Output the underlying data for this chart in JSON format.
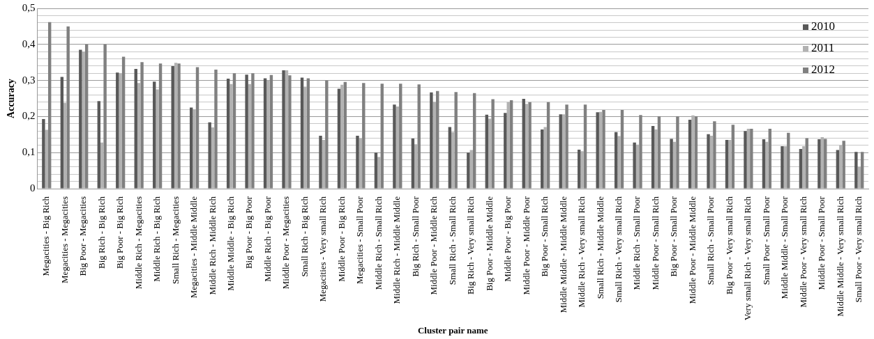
{
  "chart_data": {
    "type": "bar",
    "xlabel": "Cluster pair name",
    "ylabel": "Accuracy",
    "categories": [
      "Megacities - Big Rich",
      "Megacities - Megacities",
      "Big Poor - Megacities",
      "Big Rich - Big Rich",
      "Big Poor - Big Rich",
      "Middle Rich - Megacities",
      "Middle Rich - Big Rich",
      "Small Rich - Megacities",
      "Megacities - Middle Middle",
      "Middle Rich - Middle Rich",
      "Middle Middle - Big Rich",
      "Big Poor - Big Poor",
      "Middle Rich - Big Poor",
      "Middle Poor - Megacities",
      "Small Rich - Big Rich",
      "Megacities - Very small Rich",
      "Middle Poor - Big Rich",
      "Megacities - Small Poor",
      "Middle Rich - Small Rich",
      "Middle Rich - Middle Middle",
      "Big Rich - Small Poor",
      "Middle Poor - Middle Rich",
      "Small Rich - Small Rich",
      "Big Rich - Very small Rich",
      "Big Poor - Middle Middle",
      "Middle Poor - Big Poor",
      "Middle Poor - Middle Poor",
      "Big Poor - Small Rich",
      "Middle Middle - Middle Middle",
      "Middle Rich - Very small Rich",
      "Small Rich - Middle Middle",
      "Small Rich - Very small Rich",
      "Middle Rich - Small Poor",
      "Middle Poor - Small Rich",
      "Big Poor - Small Poor",
      "Middle Poor - Middle Middle",
      "Small Rich - Small Poor",
      "Big Poor - Very small Rich",
      "Very small Rich - Very small Rich",
      "Small Poor - Small Poor",
      "Middle Middle - Small Poor",
      "Middle Poor - Very small Rich",
      "Middle Poor - Small Poor",
      "Middle Middle - Very small Rich",
      "Small Poor - Very small Rich"
    ],
    "series": [
      {
        "name": "2010",
        "color": "#595959",
        "values": [
          0.193,
          0.31,
          0.385,
          0.243,
          0.322,
          0.332,
          0.297,
          0.34,
          0.225,
          0.184,
          0.305,
          0.316,
          0.306,
          0.328,
          0.308,
          0.147,
          0.277,
          0.147,
          0.1,
          0.233,
          0.139,
          0.267,
          0.171,
          0.1,
          0.205,
          0.21,
          0.249,
          0.164,
          0.206,
          0.108,
          0.212,
          0.157,
          0.128,
          0.174,
          0.138,
          0.191,
          0.151,
          0.135,
          0.16,
          0.137,
          0.118,
          0.11,
          0.137,
          0.107,
          0.102
        ]
      },
      {
        "name": "2011",
        "color": "#b2b2b2",
        "values": [
          0.163,
          0.238,
          0.38,
          0.128,
          0.32,
          0.293,
          0.275,
          0.349,
          0.22,
          0.17,
          0.29,
          0.29,
          0.3,
          0.328,
          0.283,
          0.135,
          0.288,
          0.139,
          0.088,
          0.228,
          0.123,
          0.24,
          0.157,
          0.107,
          0.194,
          0.24,
          0.235,
          0.171,
          0.206,
          0.104,
          0.213,
          0.146,
          0.122,
          0.164,
          0.13,
          0.203,
          0.147,
          0.135,
          0.166,
          0.13,
          0.118,
          0.118,
          0.143,
          0.12,
          0.06
        ]
      },
      {
        "name": "2012",
        "color": "#808080",
        "values": [
          0.462,
          0.45,
          0.4,
          0.4,
          0.366,
          0.351,
          0.347,
          0.347,
          0.337,
          0.33,
          0.32,
          0.32,
          0.315,
          0.314,
          0.306,
          0.3,
          0.296,
          0.293,
          0.291,
          0.291,
          0.289,
          0.271,
          0.268,
          0.265,
          0.248,
          0.245,
          0.24,
          0.24,
          0.233,
          0.233,
          0.218,
          0.218,
          0.204,
          0.201,
          0.201,
          0.201,
          0.187,
          0.177,
          0.166,
          0.166,
          0.155,
          0.14,
          0.138,
          0.133,
          0.102
        ]
      }
    ],
    "ylim": [
      0,
      0.5
    ],
    "yticks": [
      {
        "value": 0,
        "label": "0"
      },
      {
        "value": 0.02,
        "label": null
      },
      {
        "value": 0.04,
        "label": null
      },
      {
        "value": 0.06,
        "label": null
      },
      {
        "value": 0.08,
        "label": null
      },
      {
        "value": 0.1,
        "label": "0,1"
      },
      {
        "value": 0.12,
        "label": null
      },
      {
        "value": 0.14,
        "label": null
      },
      {
        "value": 0.16,
        "label": null
      },
      {
        "value": 0.18,
        "label": null
      },
      {
        "value": 0.2,
        "label": "0,2"
      },
      {
        "value": 0.22,
        "label": null
      },
      {
        "value": 0.24,
        "label": null
      },
      {
        "value": 0.26,
        "label": null
      },
      {
        "value": 0.28,
        "label": null
      },
      {
        "value": 0.3,
        "label": "0,3"
      },
      {
        "value": 0.32,
        "label": null
      },
      {
        "value": 0.34,
        "label": null
      },
      {
        "value": 0.36,
        "label": null
      },
      {
        "value": 0.38,
        "label": null
      },
      {
        "value": 0.4,
        "label": "0,4"
      },
      {
        "value": 0.42,
        "label": null
      },
      {
        "value": 0.44,
        "label": null
      },
      {
        "value": 0.46,
        "label": null
      },
      {
        "value": 0.48,
        "label": null
      },
      {
        "value": 0.5,
        "label": "0,5"
      }
    ],
    "grid": "y",
    "legend": "top right"
  }
}
